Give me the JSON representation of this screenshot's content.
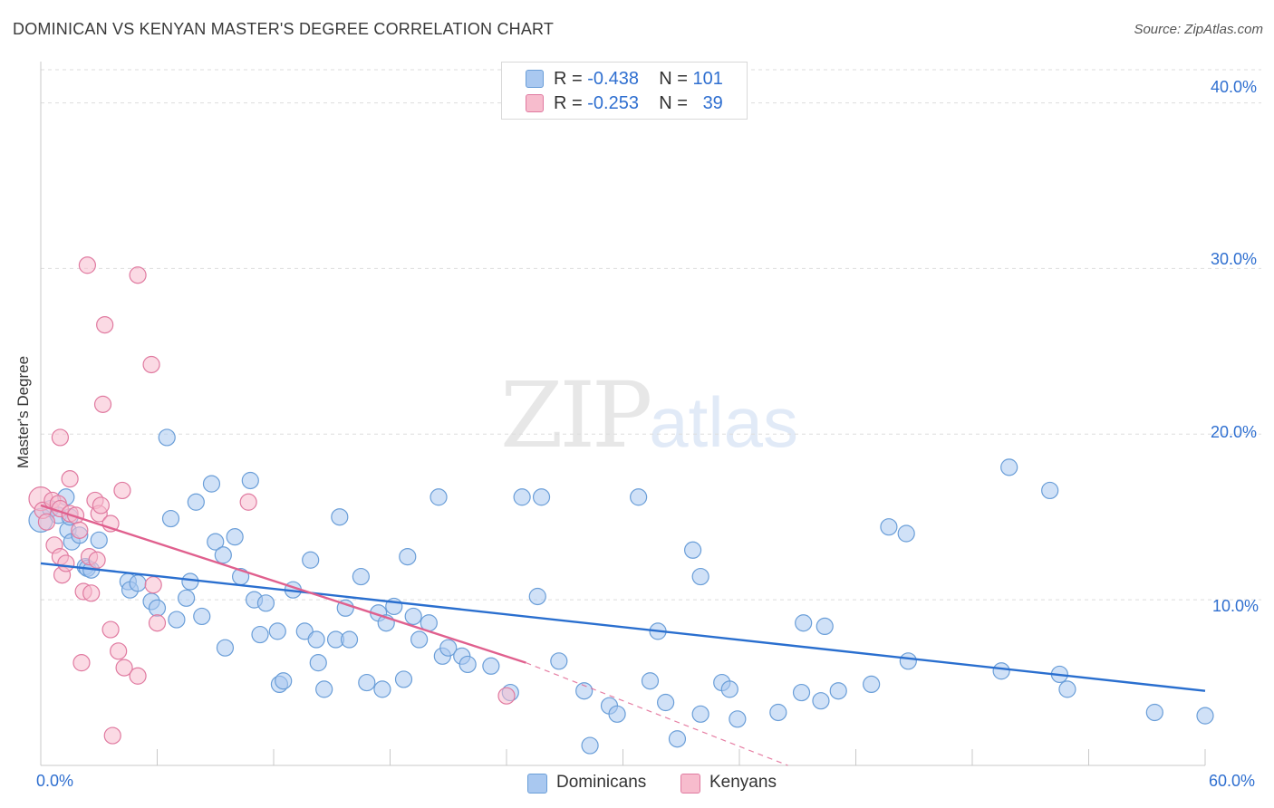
{
  "title": "DOMINICAN VS KENYAN MASTER'S DEGREE CORRELATION CHART",
  "source": "Source: ZipAtlas.com",
  "watermark": {
    "part1": "ZIP",
    "part2": "atlas"
  },
  "legend": {
    "rows": [
      {
        "r_label": "R =",
        "r_value": "-0.438",
        "n_label": "N =",
        "n_value": "101",
        "color": "#a9c8f0"
      },
      {
        "r_label": "R =",
        "r_value": "-0.253",
        "n_label": "N =",
        "n_value": "39",
        "color": "#f7b9cc"
      }
    ]
  },
  "colors": {
    "blue_fill": "#a9c8f0",
    "blue_stroke": "#6a9ed8",
    "blue_line": "#2a6fcf",
    "pink_fill": "#f7bccd",
    "pink_stroke": "#e07aa0",
    "pink_line": "#e0608e",
    "grid": "#dddddd",
    "axis_text": "#2f6fd0"
  },
  "chart_data": {
    "type": "scatter",
    "title": "DOMINICAN VS KENYAN MASTER'S DEGREE CORRELATION CHART",
    "xlabel": "",
    "ylabel": "Master's Degree",
    "xlim": [
      0,
      60
    ],
    "ylim": [
      0,
      42
    ],
    "x_tick_labels": [
      "0.0%",
      "60.0%"
    ],
    "y_ticks": [
      10,
      20,
      30,
      40
    ],
    "y_tick_labels": [
      "10.0%",
      "20.0%",
      "30.0%",
      "40.0%"
    ],
    "series": [
      {
        "name": "Dominicans",
        "r": -0.438,
        "n": 101,
        "trend": {
          "x0": 0,
          "y0": 12.2,
          "x1": 60,
          "y1": 4.5
        },
        "points": [
          [
            0.0,
            14.8
          ],
          [
            0.5,
            15.5
          ],
          [
            0.9,
            15.1
          ],
          [
            1.3,
            16.2
          ],
          [
            1.4,
            14.2
          ],
          [
            1.6,
            13.5
          ],
          [
            1.5,
            15.0
          ],
          [
            2.0,
            13.9
          ],
          [
            2.3,
            12.0
          ],
          [
            2.4,
            11.9
          ],
          [
            2.6,
            11.8
          ],
          [
            3.0,
            13.6
          ],
          [
            4.5,
            11.1
          ],
          [
            4.6,
            10.6
          ],
          [
            5.0,
            11.0
          ],
          [
            5.7,
            9.9
          ],
          [
            6.0,
            9.5
          ],
          [
            6.5,
            19.8
          ],
          [
            6.7,
            14.9
          ],
          [
            7.0,
            8.8
          ],
          [
            7.5,
            10.1
          ],
          [
            7.7,
            11.1
          ],
          [
            8.0,
            15.9
          ],
          [
            8.3,
            9.0
          ],
          [
            8.8,
            17.0
          ],
          [
            9.0,
            13.5
          ],
          [
            9.4,
            12.7
          ],
          [
            9.5,
            7.1
          ],
          [
            10.0,
            13.8
          ],
          [
            10.3,
            11.4
          ],
          [
            10.8,
            17.2
          ],
          [
            11.0,
            10.0
          ],
          [
            11.3,
            7.9
          ],
          [
            11.6,
            9.8
          ],
          [
            12.2,
            8.1
          ],
          [
            12.3,
            4.9
          ],
          [
            12.5,
            5.1
          ],
          [
            13.0,
            10.6
          ],
          [
            13.6,
            8.1
          ],
          [
            13.9,
            12.4
          ],
          [
            14.2,
            7.6
          ],
          [
            14.3,
            6.2
          ],
          [
            14.6,
            4.6
          ],
          [
            15.2,
            7.6
          ],
          [
            15.4,
            15.0
          ],
          [
            15.7,
            9.5
          ],
          [
            15.9,
            7.6
          ],
          [
            16.5,
            11.4
          ],
          [
            16.8,
            5.0
          ],
          [
            17.4,
            9.2
          ],
          [
            17.6,
            4.6
          ],
          [
            17.8,
            8.6
          ],
          [
            18.2,
            9.6
          ],
          [
            18.7,
            5.2
          ],
          [
            18.9,
            12.6
          ],
          [
            19.2,
            9.0
          ],
          [
            19.5,
            7.6
          ],
          [
            20.0,
            8.6
          ],
          [
            20.5,
            16.2
          ],
          [
            20.7,
            6.6
          ],
          [
            21.0,
            7.1
          ],
          [
            21.7,
            6.6
          ],
          [
            22.0,
            6.1
          ],
          [
            23.2,
            6.0
          ],
          [
            24.2,
            4.4
          ],
          [
            24.8,
            16.2
          ],
          [
            25.6,
            10.2
          ],
          [
            25.8,
            16.2
          ],
          [
            26.7,
            6.3
          ],
          [
            28.0,
            4.5
          ],
          [
            28.3,
            1.2
          ],
          [
            29.3,
            3.6
          ],
          [
            29.7,
            3.1
          ],
          [
            30.8,
            16.2
          ],
          [
            31.4,
            5.1
          ],
          [
            31.8,
            8.1
          ],
          [
            32.2,
            3.8
          ],
          [
            32.8,
            1.6
          ],
          [
            33.6,
            13.0
          ],
          [
            34.0,
            3.1
          ],
          [
            34.0,
            11.4
          ],
          [
            35.1,
            5.0
          ],
          [
            35.5,
            4.6
          ],
          [
            35.9,
            2.8
          ],
          [
            38.0,
            3.2
          ],
          [
            39.2,
            4.4
          ],
          [
            39.3,
            8.6
          ],
          [
            40.2,
            3.9
          ],
          [
            40.4,
            8.4
          ],
          [
            41.1,
            4.5
          ],
          [
            42.8,
            4.9
          ],
          [
            43.7,
            14.4
          ],
          [
            44.6,
            14.0
          ],
          [
            44.7,
            6.3
          ],
          [
            49.5,
            5.7
          ],
          [
            49.9,
            18.0
          ],
          [
            52.0,
            16.6
          ],
          [
            52.5,
            5.5
          ],
          [
            52.9,
            4.6
          ],
          [
            57.4,
            3.2
          ],
          [
            60.0,
            3.0
          ]
        ]
      },
      {
        "name": "Kenyans",
        "r": -0.253,
        "n": 39,
        "trend": {
          "x0": 0,
          "y0": 15.7,
          "x1": 25.0,
          "y1": 6.2,
          "dash_x1": 38.5,
          "dash_y1": 0.0
        },
        "points": [
          [
            0.0,
            16.1
          ],
          [
            0.1,
            15.4
          ],
          [
            0.3,
            14.7
          ],
          [
            0.6,
            16.0
          ],
          [
            0.7,
            13.3
          ],
          [
            0.9,
            15.8
          ],
          [
            1.0,
            15.5
          ],
          [
            1.0,
            12.6
          ],
          [
            1.0,
            19.8
          ],
          [
            1.1,
            11.5
          ],
          [
            1.3,
            12.2
          ],
          [
            1.5,
            17.3
          ],
          [
            1.5,
            15.2
          ],
          [
            1.8,
            15.1
          ],
          [
            2.0,
            14.2
          ],
          [
            2.1,
            6.2
          ],
          [
            2.2,
            10.5
          ],
          [
            2.4,
            30.2
          ],
          [
            2.5,
            12.6
          ],
          [
            2.6,
            10.4
          ],
          [
            2.8,
            16.0
          ],
          [
            2.9,
            12.4
          ],
          [
            3.0,
            15.2
          ],
          [
            3.1,
            15.7
          ],
          [
            3.2,
            21.8
          ],
          [
            3.3,
            26.6
          ],
          [
            3.6,
            8.2
          ],
          [
            3.6,
            14.6
          ],
          [
            3.7,
            1.8
          ],
          [
            4.0,
            6.9
          ],
          [
            4.2,
            16.6
          ],
          [
            4.3,
            5.9
          ],
          [
            5.0,
            29.6
          ],
          [
            5.0,
            5.4
          ],
          [
            5.7,
            24.2
          ],
          [
            5.8,
            10.9
          ],
          [
            6.0,
            8.6
          ],
          [
            10.7,
            15.9
          ],
          [
            24.0,
            4.2
          ]
        ]
      }
    ]
  }
}
